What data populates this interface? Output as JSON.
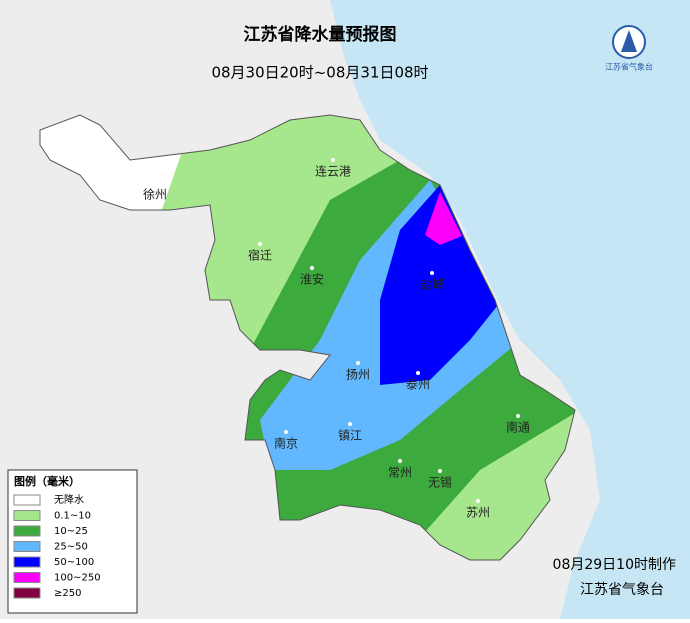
{
  "header": {
    "title": "江苏省降水量预报图",
    "subtitle": "08月30日20时~08月31日08时",
    "logo_text": "江苏省气象台"
  },
  "cities": [
    {
      "label": "徐州"
    },
    {
      "label": "连云港"
    },
    {
      "label": "宿迁"
    },
    {
      "label": "淮安"
    },
    {
      "label": "盐城"
    },
    {
      "label": "扬州"
    },
    {
      "label": "泰州"
    },
    {
      "label": "南京"
    },
    {
      "label": "镇江"
    },
    {
      "label": "南通"
    },
    {
      "label": "常州"
    },
    {
      "label": "无锡"
    },
    {
      "label": "苏州"
    }
  ],
  "legend": {
    "title": "图例（毫米）",
    "items": [
      {
        "label": "无降水",
        "color": "#ffffff"
      },
      {
        "label": "0.1~10",
        "color": "#a6e68c"
      },
      {
        "label": "10~25",
        "color": "#3daa3d"
      },
      {
        "label": "25~50",
        "color": "#61b8ff"
      },
      {
        "label": "50~100",
        "color": "#0000fe"
      },
      {
        "label": "100~250",
        "color": "#fa00fa"
      },
      {
        "label": "≥250",
        "color": "#800040"
      }
    ]
  },
  "footer": {
    "made": "08月29日10时制作",
    "agency": "江苏省气象台"
  }
}
